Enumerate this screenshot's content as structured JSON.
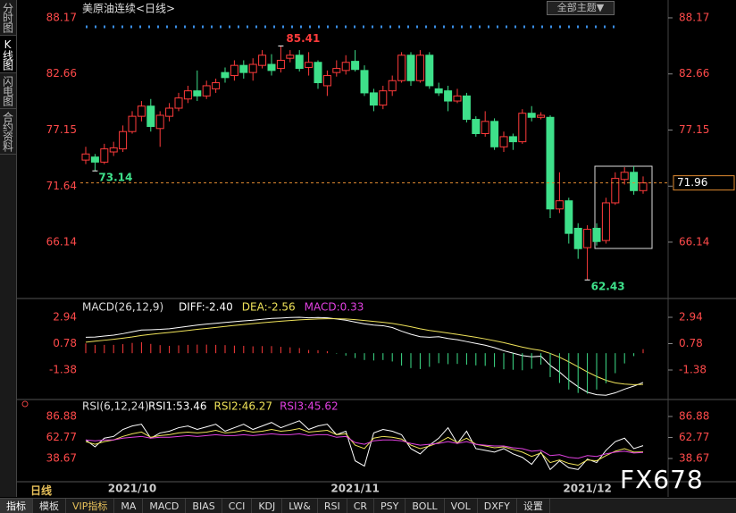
{
  "header": {
    "title": "美原油连续<日线>",
    "theme_button": "全部主题▼"
  },
  "sidebar": [
    "分时图",
    "K线图",
    "闪电图",
    "合约资料"
  ],
  "period": "日线",
  "tabs": [
    "指标",
    "模板",
    "VIP指标",
    "MA",
    "MACD",
    "BIAS",
    "CCI",
    "KDJ",
    "LW&",
    "RSI",
    "CR",
    "PSY",
    "BOLL",
    "VOL",
    "DXFY",
    "设置"
  ],
  "watermark": "FX678",
  "chart_data": [
    {
      "type": "candlestick",
      "categories": [
        null,
        null,
        null,
        null,
        null,
        "2021/10",
        null,
        null,
        null,
        null,
        null,
        null,
        null,
        null,
        null,
        null,
        null,
        null,
        null,
        null,
        null,
        null,
        null,
        null,
        null,
        null,
        null,
        null,
        null,
        "2021/11",
        null,
        null,
        null,
        null,
        null,
        null,
        null,
        null,
        null,
        null,
        null,
        null,
        null,
        null,
        null,
        null,
        null,
        null,
        null,
        null,
        null,
        null,
        null,
        null,
        "2021/12",
        null,
        null,
        null,
        null,
        null,
        null
      ],
      "open": [
        74.2,
        74.5,
        74.0,
        75.0,
        75.3,
        77.0,
        78.5,
        79.5,
        77.3,
        78.5,
        79.3,
        80.2,
        81.0,
        80.5,
        81.2,
        82.8,
        82.5,
        83.5,
        82.8,
        83.5,
        83.6,
        83.2,
        84.2,
        84.5,
        83.3,
        83.8,
        81.5,
        82.8,
        83.0,
        83.9,
        83.0,
        80.8,
        79.6,
        81.0,
        82.0,
        84.5,
        82.0,
        84.5,
        81.2,
        81.0,
        80.0,
        80.5,
        78.2,
        76.8,
        78.0,
        75.5,
        76.5,
        76.0,
        78.8,
        78.4,
        78.4,
        69.4,
        70.2,
        67.5,
        65.6,
        67.5,
        66.3,
        70.0,
        72.3,
        73.0,
        71.2
      ],
      "close": [
        74.8,
        74.0,
        75.3,
        75.4,
        77.0,
        78.5,
        79.5,
        77.5,
        78.6,
        79.3,
        80.3,
        81.0,
        80.5,
        81.5,
        81.8,
        82.3,
        83.5,
        82.8,
        83.6,
        84.5,
        83.0,
        84.0,
        84.5,
        83.2,
        83.8,
        81.8,
        82.5,
        83.2,
        83.8,
        83.1,
        80.8,
        79.6,
        81.0,
        82.0,
        84.5,
        82.0,
        84.5,
        81.5,
        80.8,
        80.0,
        80.5,
        78.2,
        76.8,
        78.0,
        75.5,
        76.5,
        76.0,
        78.8,
        78.4,
        78.6,
        69.4,
        70.2,
        67.0,
        65.5,
        67.4,
        66.2,
        70.0,
        72.4,
        73.0,
        71.2,
        71.96
      ],
      "high": [
        75.5,
        74.8,
        75.8,
        76.0,
        77.6,
        79.0,
        80.0,
        80.2,
        79.0,
        79.8,
        80.8,
        81.5,
        83.0,
        82.0,
        82.2,
        83.3,
        84.0,
        84.0,
        84.2,
        85.0,
        84.6,
        85.41,
        85.0,
        85.0,
        84.8,
        84.0,
        83.0,
        84.0,
        84.5,
        85.0,
        83.5,
        81.2,
        81.5,
        82.5,
        84.8,
        84.8,
        85.0,
        84.8,
        81.8,
        81.5,
        81.2,
        80.8,
        78.5,
        79.0,
        78.3,
        77.0,
        76.8,
        79.2,
        79.5,
        78.9,
        78.6,
        73.0,
        70.5,
        68.0,
        67.8,
        68.0,
        70.5,
        73.0,
        73.5,
        73.6,
        72.6
      ],
      "low": [
        73.8,
        73.14,
        73.8,
        74.6,
        75.0,
        76.8,
        78.0,
        77.0,
        75.5,
        78.0,
        79.0,
        79.8,
        80.0,
        80.2,
        80.8,
        81.8,
        82.0,
        82.2,
        82.0,
        83.2,
        82.5,
        82.8,
        83.8,
        82.9,
        82.5,
        81.2,
        80.5,
        82.4,
        82.6,
        82.9,
        80.5,
        79.0,
        79.2,
        80.5,
        81.8,
        81.5,
        81.8,
        81.2,
        80.5,
        79.0,
        79.8,
        77.9,
        76.5,
        76.5,
        75.2,
        75.0,
        75.2,
        75.8,
        78.0,
        78.2,
        68.5,
        69.0,
        66.0,
        64.5,
        62.43,
        65.8,
        66.0,
        69.8,
        71.8,
        70.8,
        70.9
      ],
      "high_labels": [
        null,
        null,
        null,
        null,
        null,
        null,
        null,
        null,
        null,
        null,
        null,
        null,
        null,
        null,
        null,
        null,
        null,
        null,
        null,
        null,
        null,
        "85.41",
        null,
        null,
        null,
        null,
        null,
        null,
        null,
        null,
        null,
        null,
        null,
        null,
        null,
        null,
        null,
        null,
        null,
        null,
        null,
        null,
        null,
        null,
        null,
        null,
        null,
        null,
        null,
        null,
        null,
        null,
        null,
        null,
        null,
        null,
        null,
        null,
        null,
        null,
        null
      ],
      "low_labels": [
        null,
        "73.14",
        null,
        null,
        null,
        null,
        null,
        null,
        null,
        null,
        null,
        null,
        null,
        null,
        null,
        null,
        null,
        null,
        null,
        null,
        null,
        null,
        null,
        null,
        null,
        null,
        null,
        null,
        null,
        null,
        null,
        null,
        null,
        null,
        null,
        null,
        null,
        null,
        null,
        null,
        null,
        null,
        null,
        null,
        null,
        null,
        null,
        null,
        null,
        null,
        null,
        null,
        null,
        null,
        "62.43",
        null,
        null,
        null,
        null,
        null,
        null
      ],
      "last_price_label": "71.96",
      "up_color": "#ff3b3b",
      "down_color": "#3ee08a",
      "ylim": [
        60.78,
        89.22
      ],
      "yticks": [
        66.14,
        71.64,
        77.15,
        82.66,
        88.17
      ]
    },
    {
      "type": "macd",
      "title": "MACD(26,12,9)",
      "series": [
        {
          "name": "DIFF",
          "label": "DIFF:-2.40",
          "kind": "line",
          "color": "#ffffff",
          "values": [
            1.3,
            1.32,
            1.4,
            1.48,
            1.6,
            1.75,
            1.9,
            1.92,
            1.95,
            2.0,
            2.1,
            2.2,
            2.3,
            2.38,
            2.45,
            2.52,
            2.58,
            2.65,
            2.7,
            2.78,
            2.85,
            2.88,
            2.92,
            2.94,
            2.9,
            2.92,
            2.9,
            2.8,
            2.7,
            2.55,
            2.4,
            2.3,
            2.25,
            2.1,
            1.8,
            1.55,
            1.35,
            1.3,
            1.35,
            1.2,
            1.1,
            0.95,
            0.8,
            0.65,
            0.45,
            0.2,
            0.0,
            -0.2,
            -0.3,
            -0.25,
            -1.0,
            -1.55,
            -2.2,
            -2.75,
            -3.2,
            -3.4,
            -3.45,
            -3.25,
            -2.95,
            -2.7,
            -2.4
          ]
        },
        {
          "name": "DEA",
          "label": "DEA:-2.56",
          "kind": "line",
          "color": "#f0e35a",
          "values": [
            0.9,
            0.98,
            1.06,
            1.14,
            1.23,
            1.33,
            1.45,
            1.54,
            1.62,
            1.7,
            1.78,
            1.86,
            1.95,
            2.03,
            2.11,
            2.19,
            2.27,
            2.35,
            2.42,
            2.49,
            2.56,
            2.62,
            2.68,
            2.73,
            2.77,
            2.8,
            2.82,
            2.82,
            2.8,
            2.75,
            2.68,
            2.6,
            2.53,
            2.44,
            2.31,
            2.16,
            2.0,
            1.86,
            1.76,
            1.65,
            1.54,
            1.42,
            1.3,
            1.17,
            1.02,
            0.86,
            0.68,
            0.5,
            0.34,
            0.22,
            -0.02,
            -0.33,
            -0.71,
            -1.12,
            -1.54,
            -1.91,
            -2.22,
            -2.43,
            -2.53,
            -2.58,
            -2.56
          ]
        },
        {
          "name": "MACD",
          "label": "MACD:0.33",
          "kind": "bar",
          "color": "#e040e0",
          "up_color": "#ff3b3b",
          "down_color": "#3ee08a",
          "values": [
            0.8,
            0.68,
            0.68,
            0.68,
            0.74,
            0.84,
            0.9,
            0.76,
            0.66,
            0.6,
            0.64,
            0.68,
            0.7,
            0.7,
            0.68,
            0.66,
            0.62,
            0.6,
            0.56,
            0.58,
            0.58,
            0.52,
            0.48,
            0.42,
            0.26,
            0.24,
            0.16,
            -0.04,
            -0.2,
            -0.4,
            -0.56,
            -0.6,
            -0.56,
            -0.68,
            -1.02,
            -1.22,
            -1.3,
            -1.12,
            -0.82,
            -0.9,
            -0.88,
            -0.94,
            -1.0,
            -1.04,
            -1.14,
            -1.32,
            -1.36,
            -1.4,
            -1.28,
            -0.94,
            -1.96,
            -2.44,
            -2.98,
            -3.26,
            -3.32,
            -2.98,
            -2.46,
            -1.64,
            -0.84,
            -0.24,
            0.33
          ]
        }
      ],
      "ylim": [
        -3.65,
        4.04
      ],
      "yticks": [
        -1.38,
        0.78,
        2.94
      ]
    },
    {
      "type": "rsi",
      "title": "RSI(6,12,24)",
      "series": [
        {
          "name": "RSI1",
          "label": "RSI1:53.46",
          "color": "#ffffff",
          "values": [
            60,
            52,
            62,
            64,
            72,
            76,
            78,
            62,
            68,
            70,
            74,
            76,
            72,
            75,
            78,
            70,
            74,
            78,
            72,
            76,
            80,
            74,
            78,
            82,
            72,
            76,
            78,
            66,
            70,
            36,
            30,
            68,
            72,
            70,
            66,
            50,
            44,
            54,
            62,
            74,
            56,
            70,
            50,
            48,
            46,
            50,
            44,
            40,
            32,
            46,
            26,
            36,
            28,
            26,
            38,
            34,
            48,
            58,
            62,
            50,
            53.46
          ]
        },
        {
          "name": "RSI2",
          "label": "RSI2:46.27",
          "color": "#f0e35a",
          "values": [
            58,
            55,
            58,
            60,
            64,
            67,
            69,
            63,
            65,
            66,
            68,
            69,
            68,
            69,
            71,
            68,
            69,
            71,
            69,
            70,
            72,
            70,
            71,
            73,
            69,
            70,
            71,
            66,
            67,
            54,
            50,
            62,
            64,
            63,
            61,
            54,
            50,
            53,
            57,
            63,
            57,
            62,
            55,
            53,
            51,
            52,
            49,
            46,
            41,
            45,
            34,
            37,
            33,
            31,
            37,
            36,
            42,
            47,
            50,
            46,
            46.27
          ]
        },
        {
          "name": "RSI3",
          "label": "RSI3:45.62",
          "color": "#e040e0",
          "values": [
            60,
            59,
            60,
            60,
            62,
            63,
            64,
            62,
            63,
            63,
            64,
            65,
            64,
            65,
            66,
            65,
            65,
            66,
            65,
            66,
            67,
            66,
            66,
            67,
            65,
            66,
            66,
            63,
            64,
            57,
            55,
            59,
            60,
            60,
            59,
            56,
            54,
            55,
            56,
            58,
            56,
            58,
            55,
            54,
            53,
            53,
            51,
            50,
            47,
            48,
            42,
            43,
            40,
            39,
            42,
            41,
            44,
            46,
            47,
            45,
            45.62
          ]
        }
      ],
      "ylim": [
        11,
        103.3
      ],
      "yticks": [
        38.67,
        62.77,
        86.88
      ]
    }
  ]
}
